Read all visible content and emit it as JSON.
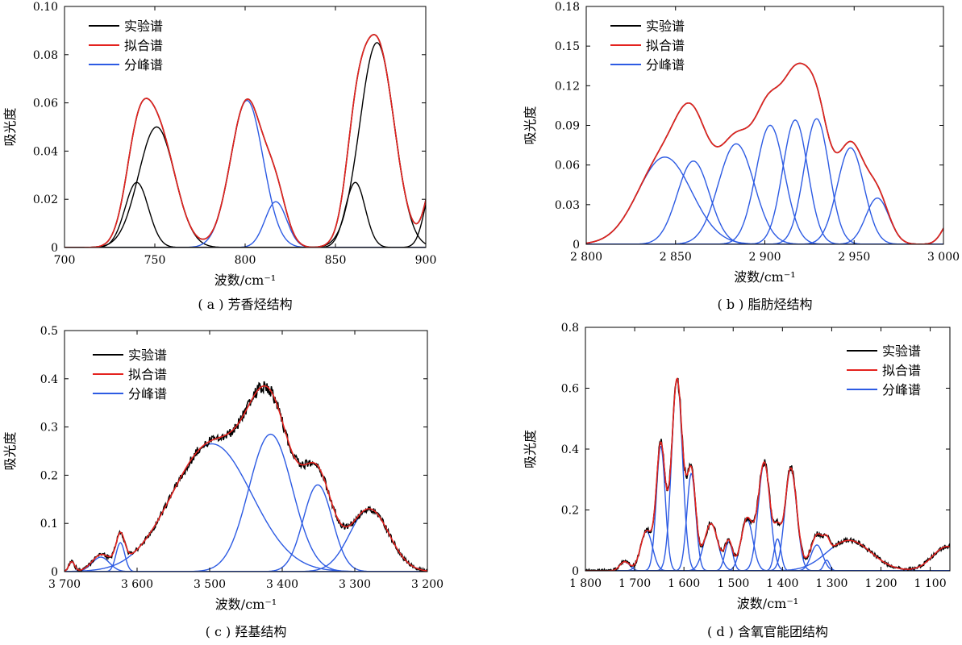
{
  "colors": {
    "experimental": "#000000",
    "fitted": "#e4231f",
    "peaks": "#2d5be3",
    "axis": "#000000"
  },
  "chart_data": [
    {
      "id": "a",
      "type": "line",
      "caption": "( a ) 芳香烃结构",
      "xlabel": "波数/cm⁻¹",
      "ylabel": "吸光度",
      "xlim": [
        700,
        900
      ],
      "ylim": [
        0,
        0.1
      ],
      "x_reversed": false,
      "x_ticks": [
        700,
        750,
        800,
        850,
        900
      ],
      "x_tick_labels": [
        "700",
        "750",
        "800",
        "850",
        "900"
      ],
      "y_ticks": [
        0,
        0.02,
        0.04,
        0.06,
        0.08,
        0.1
      ],
      "y_tick_labels": [
        "0",
        "0.02",
        "0.04",
        "0.06",
        "0.08",
        "0.10"
      ],
      "legend": {
        "position": "top-left",
        "entries": [
          {
            "label": "实验谱",
            "role": "experimental"
          },
          {
            "label": "拟合谱",
            "role": "fitted"
          },
          {
            "label": "分峰谱",
            "role": "peaks"
          }
        ]
      },
      "peaks": [
        {
          "center": 740,
          "height": 0.027,
          "width": 6.5,
          "color_role": "experimental"
        },
        {
          "center": 751,
          "height": 0.05,
          "width": 10.0,
          "color_role": "experimental"
        },
        {
          "center": 801,
          "height": 0.061,
          "width": 9.0,
          "color_role": "peaks"
        },
        {
          "center": 817,
          "height": 0.019,
          "width": 6.0,
          "color_role": "peaks"
        },
        {
          "center": 861,
          "height": 0.027,
          "width": 5.5,
          "color_role": "experimental"
        },
        {
          "center": 873,
          "height": 0.085,
          "width": 9.5,
          "color_role": "experimental"
        },
        {
          "center": 905,
          "height": 0.03,
          "width": 5.0,
          "color_role": "experimental"
        }
      ],
      "experimental_noise": 0.0
    },
    {
      "id": "b",
      "type": "line",
      "caption": "( b ) 脂肪烃结构",
      "xlabel": "波数/cm⁻¹",
      "ylabel": "吸光度",
      "xlim": [
        2800,
        3000
      ],
      "ylim": [
        0,
        0.18
      ],
      "x_reversed": false,
      "x_ticks": [
        2800,
        2850,
        2900,
        2950,
        3000
      ],
      "x_tick_labels": [
        "2 800",
        "2 850",
        "2 900",
        "2 950",
        "3 000"
      ],
      "y_ticks": [
        0,
        0.03,
        0.06,
        0.09,
        0.12,
        0.15,
        0.18
      ],
      "y_tick_labels": [
        "0",
        "0.03",
        "0.06",
        "0.09",
        "0.12",
        "0.15",
        "0.18"
      ],
      "legend": {
        "position": "top-left",
        "entries": [
          {
            "label": "实验谱",
            "role": "experimental"
          },
          {
            "label": "拟合谱",
            "role": "fitted"
          },
          {
            "label": "分峰谱",
            "role": "peaks"
          }
        ]
      },
      "peaks": [
        {
          "center": 2844,
          "height": 0.066,
          "width": 15.0,
          "color_role": "peaks"
        },
        {
          "center": 2860,
          "height": 0.063,
          "width": 9.0,
          "color_role": "peaks"
        },
        {
          "center": 2884,
          "height": 0.076,
          "width": 10.0,
          "color_role": "peaks"
        },
        {
          "center": 2903,
          "height": 0.09,
          "width": 8.0,
          "color_role": "peaks"
        },
        {
          "center": 2917,
          "height": 0.094,
          "width": 7.0,
          "color_role": "peaks"
        },
        {
          "center": 2929,
          "height": 0.095,
          "width": 7.0,
          "color_role": "peaks"
        },
        {
          "center": 2948,
          "height": 0.073,
          "width": 7.5,
          "color_role": "peaks"
        },
        {
          "center": 2963,
          "height": 0.035,
          "width": 6.5,
          "color_role": "peaks"
        },
        {
          "center": 3005,
          "height": 0.02,
          "width": 5.0,
          "color_role": "peaks"
        }
      ],
      "experimental_noise": 0.0
    },
    {
      "id": "c",
      "type": "line",
      "caption": "( c ) 羟基结构",
      "xlabel": "波数/cm⁻¹",
      "ylabel": "吸光度",
      "xlim": [
        3200,
        3700
      ],
      "ylim": [
        0,
        0.5
      ],
      "x_reversed": true,
      "x_ticks": [
        3700,
        3600,
        3500,
        3400,
        3300,
        3200
      ],
      "x_tick_labels": [
        "3 700",
        "3 600",
        "3 500",
        "3 400",
        "3 300",
        "3 200"
      ],
      "y_ticks": [
        0,
        0.1,
        0.2,
        0.3,
        0.4,
        0.5
      ],
      "y_tick_labels": [
        "0",
        "0.1",
        "0.2",
        "0.3",
        "0.4",
        "0.5"
      ],
      "legend": {
        "position": "top-left",
        "entries": [
          {
            "label": "实验谱",
            "role": "experimental"
          },
          {
            "label": "拟合谱",
            "role": "fitted"
          },
          {
            "label": "分峰谱",
            "role": "peaks"
          }
        ]
      },
      "peaks": [
        {
          "center": 3690,
          "height": 0.02,
          "width": 4.0,
          "color_role": "peaks"
        },
        {
          "center": 3650,
          "height": 0.03,
          "width": 12.0,
          "color_role": "peaks"
        },
        {
          "center": 3623,
          "height": 0.06,
          "width": 6.0,
          "color_role": "peaks"
        },
        {
          "center": 3497,
          "height": 0.265,
          "width": 55.0,
          "color_role": "peaks"
        },
        {
          "center": 3416,
          "height": 0.285,
          "width": 30.0,
          "color_role": "peaks"
        },
        {
          "center": 3351,
          "height": 0.18,
          "width": 20.0,
          "color_role": "peaks"
        },
        {
          "center": 3280,
          "height": 0.13,
          "width": 27.0,
          "color_role": "peaks"
        }
      ],
      "experimental_noise": 0.012
    },
    {
      "id": "d",
      "type": "line",
      "caption": "( d ) 含氧官能团结构",
      "xlabel": "波数/cm⁻¹",
      "ylabel": "吸光度",
      "xlim": [
        1060,
        1800
      ],
      "ylim": [
        0,
        0.8
      ],
      "x_reversed": true,
      "x_ticks": [
        1800,
        1700,
        1600,
        1500,
        1400,
        1300,
        1200,
        1100
      ],
      "x_tick_labels": [
        "1 800",
        "1 700",
        "1 600",
        "1 500",
        "1 400",
        "1 300",
        "1 200",
        "1 100"
      ],
      "y_ticks": [
        0,
        0.2,
        0.4,
        0.6,
        0.8
      ],
      "y_tick_labels": [
        "0",
        "0.2",
        "0.4",
        "0.6",
        "0.8"
      ],
      "legend": {
        "position": "top-right",
        "entries": [
          {
            "label": "实验谱",
            "role": "experimental"
          },
          {
            "label": "拟合谱",
            "role": "fitted"
          },
          {
            "label": "分峰谱",
            "role": "peaks"
          }
        ]
      },
      "peaks": [
        {
          "center": 1720,
          "height": 0.03,
          "width": 10.0,
          "color_role": "peaks"
        },
        {
          "center": 1676,
          "height": 0.13,
          "width": 12.0,
          "color_role": "peaks"
        },
        {
          "center": 1647,
          "height": 0.41,
          "width": 9.0,
          "color_role": "peaks"
        },
        {
          "center": 1614,
          "height": 0.63,
          "width": 11.0,
          "color_role": "peaks"
        },
        {
          "center": 1585,
          "height": 0.32,
          "width": 9.0,
          "color_role": "peaks"
        },
        {
          "center": 1545,
          "height": 0.155,
          "width": 14.0,
          "color_role": "peaks"
        },
        {
          "center": 1509,
          "height": 0.095,
          "width": 8.0,
          "color_role": "peaks"
        },
        {
          "center": 1472,
          "height": 0.17,
          "width": 12.0,
          "color_role": "peaks"
        },
        {
          "center": 1437,
          "height": 0.355,
          "width": 12.0,
          "color_role": "peaks"
        },
        {
          "center": 1410,
          "height": 0.105,
          "width": 7.0,
          "color_role": "peaks"
        },
        {
          "center": 1383,
          "height": 0.335,
          "width": 12.0,
          "color_role": "peaks"
        },
        {
          "center": 1330,
          "height": 0.085,
          "width": 12.0,
          "color_role": "peaks"
        },
        {
          "center": 1310,
          "height": 0.035,
          "width": 6.0,
          "color_role": "peaks"
        },
        {
          "center": 1265,
          "height": 0.1,
          "width": 45.0,
          "color_role": "peaks"
        },
        {
          "center": 1065,
          "height": 0.08,
          "width": 30.0,
          "color_role": "peaks"
        }
      ],
      "experimental_noise": 0.018
    }
  ]
}
